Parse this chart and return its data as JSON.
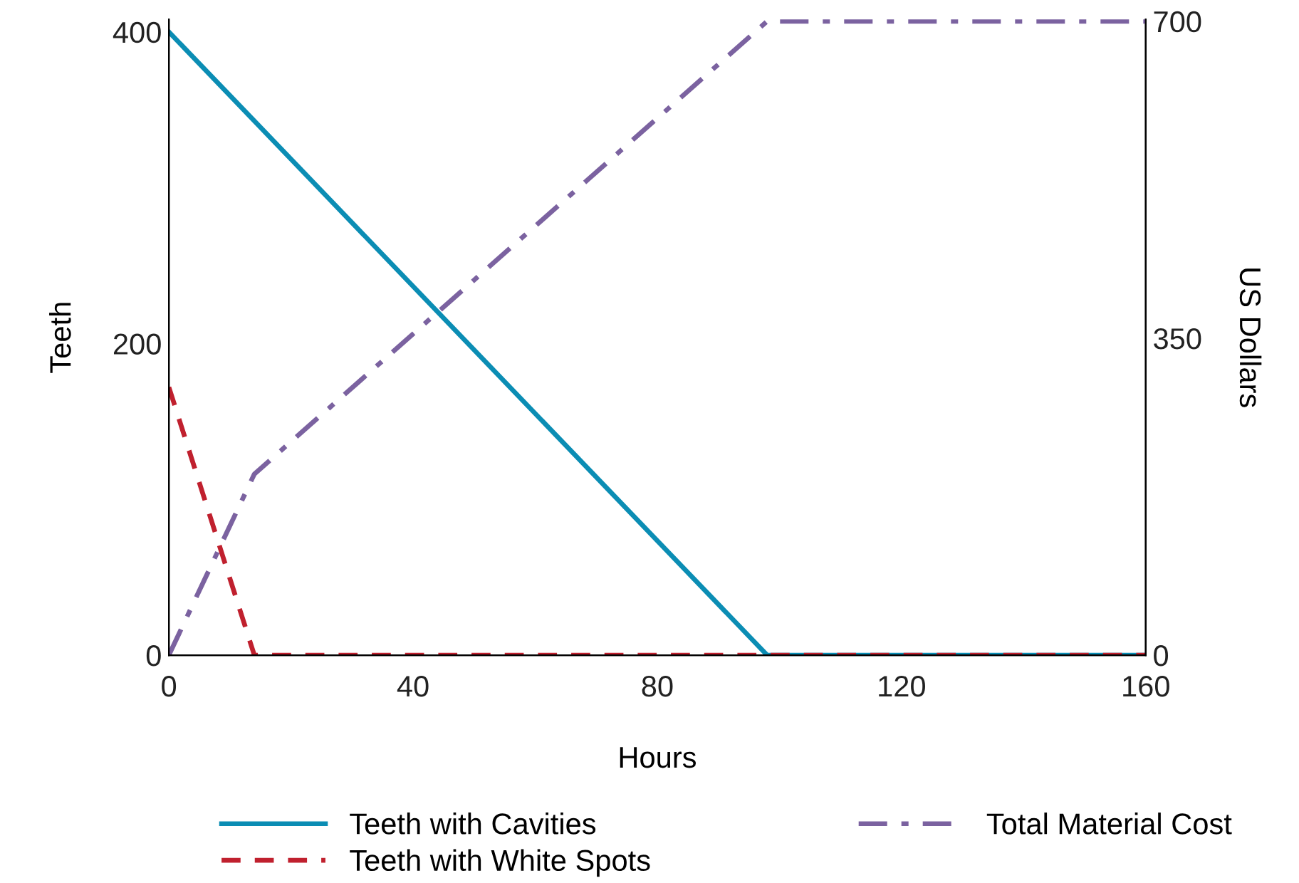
{
  "chart_data": {
    "type": "line",
    "xlabel": "Hours",
    "ylabel": "Teeth",
    "y2label": "US Dollars",
    "xlim": [
      0,
      160
    ],
    "xticks": [
      0,
      40,
      80,
      120,
      160
    ],
    "ylim": [
      0,
      408
    ],
    "yticks": [
      0,
      200,
      400
    ],
    "y2lim": [
      0,
      702
    ],
    "y2ticks": [
      0,
      350,
      700
    ],
    "legend": "bottom",
    "grid": false,
    "series": [
      {
        "name": "Teeth with Cavities",
        "color": "#0b8db4",
        "line_style": "solid",
        "x": [
          0,
          98,
          160
        ],
        "values": [
          400,
          0,
          0
        ]
      },
      {
        "name": "Teeth with White Spots",
        "color": "#c0202e",
        "line_style": "dashed",
        "x": [
          0,
          14,
          160
        ],
        "values": [
          172,
          0,
          0
        ]
      },
      {
        "name": "Total Material Cost",
        "color": "#7b62a0",
        "line_style": "dashdot",
        "axis": "y2",
        "x": [
          0,
          14,
          98,
          160
        ],
        "values": [
          0,
          200,
          700,
          700
        ]
      }
    ]
  }
}
